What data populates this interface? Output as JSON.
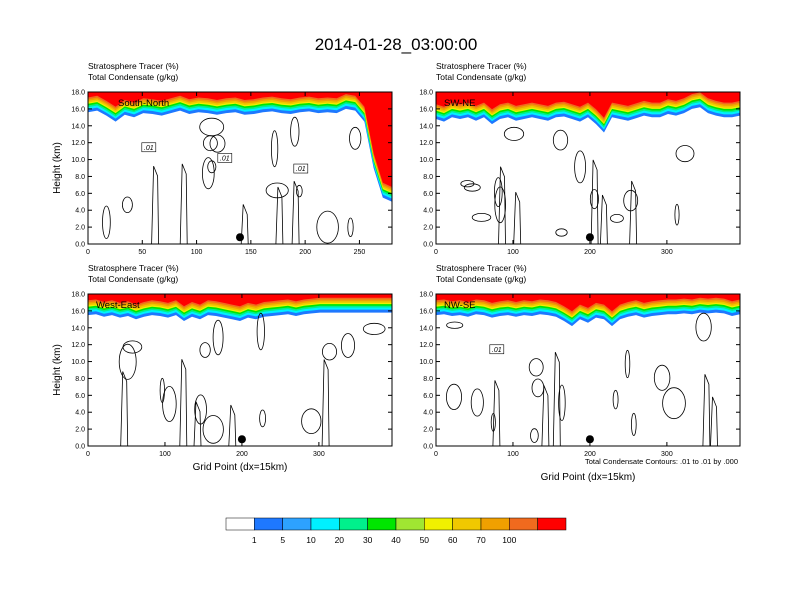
{
  "title": "2014-01-28_03:00:00",
  "footnote": "Total Condensate Contours: .01 to .01 by .000",
  "colorbar": {
    "colors": [
      "#ffffff",
      "#1e78ff",
      "#2da2ff",
      "#00f0ff",
      "#00f08c",
      "#00e600",
      "#a0e632",
      "#f0f000",
      "#f0c800",
      "#f0a000",
      "#f06a1e",
      "#ff0000"
    ],
    "labels": [
      "1",
      "5",
      "10",
      "20",
      "30",
      "40",
      "50",
      "60",
      "70",
      "100"
    ]
  },
  "chart_data": [
    {
      "type": "heatmap",
      "panel": "top-left",
      "label": "South-North",
      "subtitle_line1": "Stratosphere Tracer   (%)",
      "subtitle_line2": "Total Condensate   (g/kg)",
      "ylabel": "Height (km)",
      "xlabel": "",
      "xlim": [
        0,
        280
      ],
      "ylim": [
        0,
        18
      ],
      "xticks": [
        "0",
        "50",
        "100",
        "150",
        "200",
        "250"
      ],
      "xtick_values": [
        0,
        50,
        100,
        150,
        200,
        250
      ],
      "yticks": [
        "0.0",
        "2.0",
        "4.0",
        "6.0",
        "8.0",
        "10.0",
        "12.0",
        "14.0",
        "16.0",
        "18.0"
      ],
      "contour_labels": [
        ".01",
        ".01",
        ".01"
      ],
      "marker_x": 140,
      "tracer_base_profile_km": [
        15.6,
        15.8,
        15.2,
        14.5,
        15.3,
        15.0,
        15.5,
        15.4,
        15.2,
        15.5,
        15.8,
        15.4,
        15.6,
        15.5,
        15.3,
        15.5,
        15.6,
        15.3,
        15.4,
        15.6,
        15.7,
        15.5,
        15.4,
        15.6,
        15.7,
        15.5,
        15.6,
        15.5,
        16.0,
        15.8,
        14.5,
        9.0,
        5.5,
        5.0
      ]
    },
    {
      "type": "heatmap",
      "panel": "top-right",
      "label": "SW-NE",
      "subtitle_line1": "Stratosphere Tracer   (%)",
      "subtitle_line2": "Total Condensate   (g/kg)",
      "ylabel": "",
      "xlabel": "",
      "xlim": [
        0,
        395
      ],
      "ylim": [
        0,
        18
      ],
      "xticks": [
        "0",
        "100",
        "200",
        "300"
      ],
      "xtick_values": [
        0,
        100,
        200,
        300
      ],
      "yticks": [
        "0.0",
        "2.0",
        "4.0",
        "6.0",
        "8.0",
        "10.0",
        "12.0",
        "14.0",
        "16.0",
        "18.0"
      ],
      "contour_labels": [],
      "marker_x": 200,
      "tracer_base_profile_km": [
        14.8,
        14.5,
        15.0,
        14.8,
        15.0,
        14.6,
        15.0,
        14.2,
        14.8,
        15.0,
        14.6,
        14.8,
        15.0,
        14.8,
        14.6,
        15.0,
        15.1,
        14.8,
        14.5,
        15.0,
        14.2,
        13.2,
        15.0,
        14.8,
        14.6,
        14.9,
        15.2,
        15.0,
        15.0,
        15.4,
        15.2,
        15.5,
        16.0,
        16.2,
        15.5,
        15.2,
        15.0,
        15.0,
        15.2
      ]
    },
    {
      "type": "heatmap",
      "panel": "bottom-left",
      "label": "West-East",
      "subtitle_line1": "Stratosphere Tracer   (%)",
      "subtitle_line2": "Total Condensate   (g/kg)",
      "ylabel": "Height (km)",
      "xlabel": "Grid Point (dx=15km)",
      "xlim": [
        0,
        395
      ],
      "ylim": [
        0,
        18
      ],
      "xticks": [
        "0",
        "100",
        "200",
        "300"
      ],
      "xtick_values": [
        0,
        100,
        200,
        300
      ],
      "yticks": [
        "0.0",
        "2.0",
        "4.0",
        "6.0",
        "8.0",
        "10.0",
        "12.0",
        "14.0",
        "16.0",
        "18.0"
      ],
      "contour_labels": [],
      "marker_x": 200,
      "tracer_base_profile_km": [
        15.5,
        15.6,
        15.3,
        15.5,
        15.2,
        15.4,
        15.0,
        15.3,
        15.5,
        15.4,
        15.2,
        15.5,
        14.8,
        15.3,
        15.0,
        15.5,
        15.4,
        15.2,
        15.0,
        14.8,
        15.2,
        15.0,
        15.3,
        15.4,
        15.5,
        15.6,
        15.4,
        15.6,
        15.7,
        15.8,
        15.8,
        15.8,
        15.8,
        15.8,
        15.8,
        15.8,
        15.8,
        15.8,
        15.8
      ]
    },
    {
      "type": "heatmap",
      "panel": "bottom-right",
      "label": "NW-SE",
      "subtitle_line1": "Stratosphere Tracer   (%)",
      "subtitle_line2": "Total Condensate   (g/kg)",
      "ylabel": "",
      "xlabel": "Grid Point (dx=15km)",
      "xlim": [
        0,
        395
      ],
      "ylim": [
        0,
        18
      ],
      "xticks": [
        "0",
        "100",
        "200",
        "300"
      ],
      "xtick_values": [
        0,
        100,
        200,
        300
      ],
      "yticks": [
        "0.0",
        "2.0",
        "4.0",
        "6.0",
        "8.0",
        "10.0",
        "12.0",
        "14.0",
        "16.0",
        "18.0"
      ],
      "contour_labels": [
        ".01"
      ],
      "marker_x": 200,
      "tracer_base_profile_km": [
        15.5,
        15.6,
        15.4,
        15.5,
        15.3,
        15.6,
        15.5,
        15.2,
        15.4,
        15.5,
        15.3,
        15.5,
        15.4,
        15.6,
        15.5,
        15.3,
        14.8,
        14.2,
        15.0,
        14.6,
        15.2,
        15.0,
        14.2,
        15.0,
        15.3,
        15.5,
        15.2,
        15.4,
        15.5,
        15.6,
        15.6,
        15.7,
        15.6,
        15.8,
        15.7,
        15.8,
        15.7,
        15.4,
        15.6
      ]
    }
  ]
}
